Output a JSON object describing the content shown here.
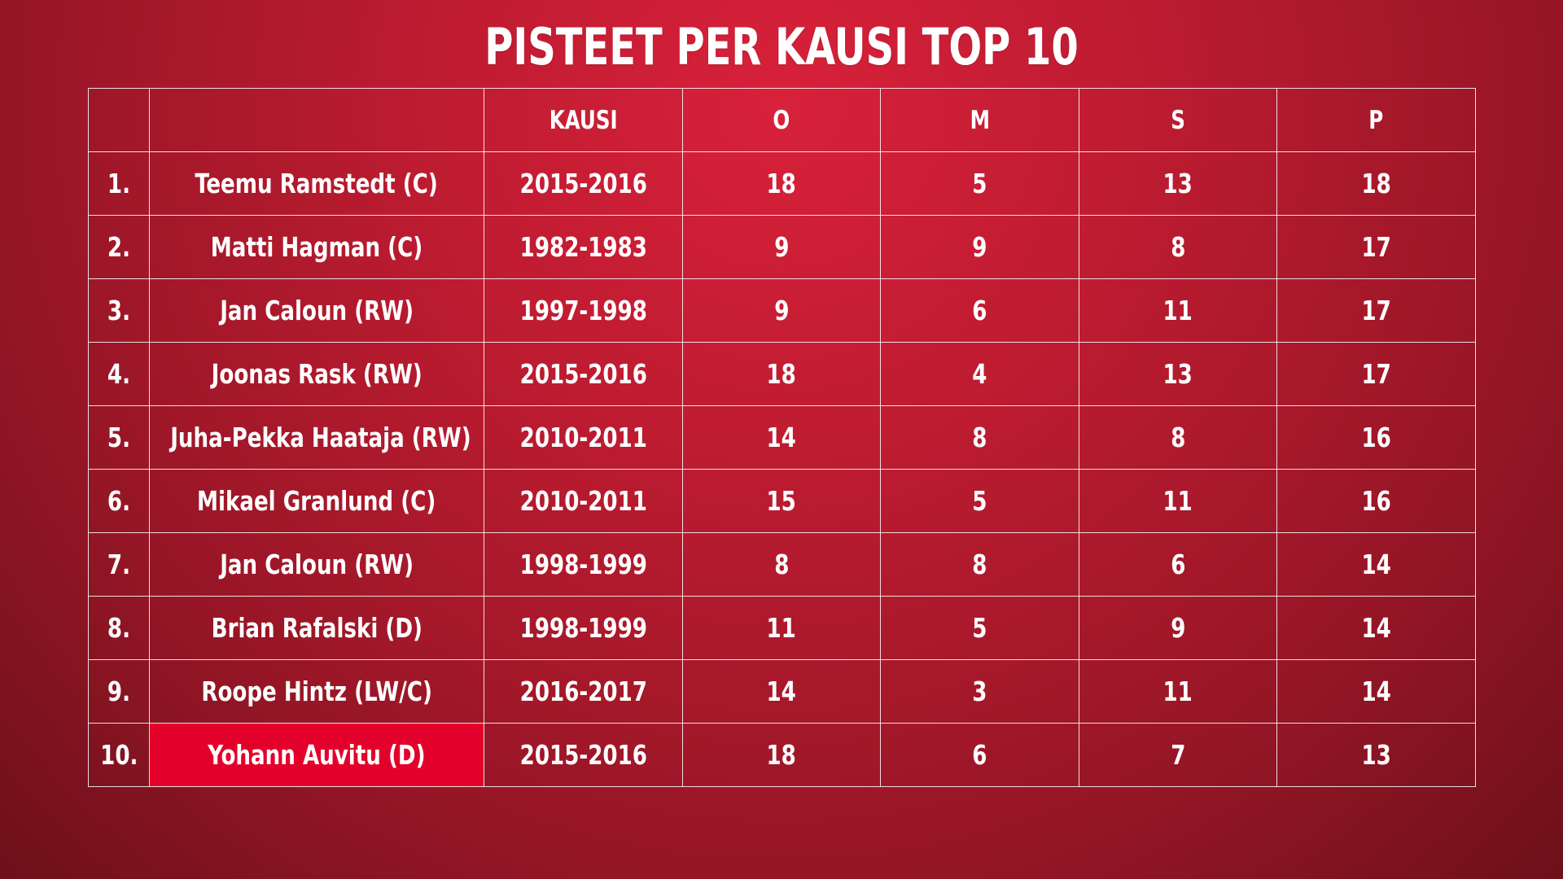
{
  "title": "PISTEET PER KAUSI TOP 10",
  "colors": {
    "background": "#b81a2e",
    "highlight": "#e3002a",
    "text": "#ffffff",
    "grid": "#ffffff"
  },
  "chart_data": {
    "type": "table",
    "title": "PISTEET PER KAUSI TOP 10",
    "columns": [
      "",
      "",
      "KAUSI",
      "O",
      "M",
      "S",
      "P"
    ],
    "rows": [
      [
        "1.",
        "Teemu Ramstedt (C)",
        "2015-2016",
        "18",
        "5",
        "13",
        "18"
      ],
      [
        "2.",
        "Matti Hagman (C)",
        "1982-1983",
        "9",
        "9",
        "8",
        "17"
      ],
      [
        "3.",
        "Jan Caloun (RW)",
        "1997-1998",
        "9",
        "6",
        "11",
        "17"
      ],
      [
        "4.",
        "Joonas Rask (RW)",
        "2015-2016",
        "18",
        "4",
        "13",
        "17"
      ],
      [
        "5.",
        "Juha-Pekka Haataja (RW)",
        "2010-2011",
        "14",
        "8",
        "8",
        "16"
      ],
      [
        "6.",
        "Mikael Granlund (C)",
        "2010-2011",
        "15",
        "5",
        "11",
        "16"
      ],
      [
        "7.",
        "Jan Caloun (RW)",
        "1998-1999",
        "8",
        "8",
        "6",
        "14"
      ],
      [
        "8.",
        "Brian Rafalski (D)",
        "1998-1999",
        "11",
        "5",
        "9",
        "14"
      ],
      [
        "9.",
        "Roope Hintz (LW/C)",
        "2016-2017",
        "14",
        "3",
        "11",
        "14"
      ],
      [
        "10.",
        "Yohann Auvitu (D)",
        "2015-2016",
        "18",
        "6",
        "7",
        "13"
      ]
    ],
    "highlighted_row": 9,
    "highlighted_column": 1
  }
}
